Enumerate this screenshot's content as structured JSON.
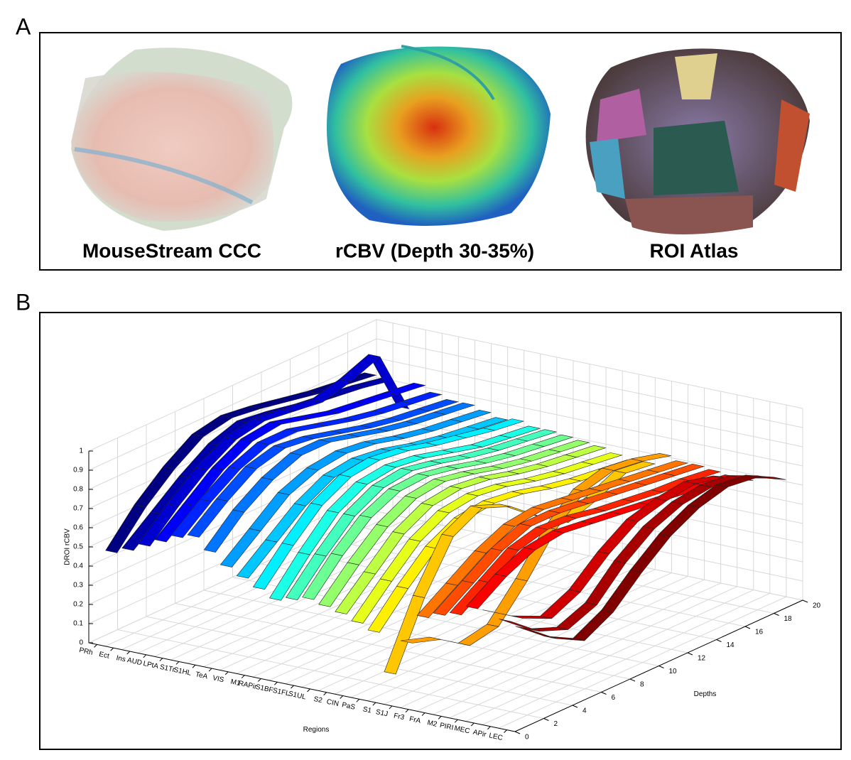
{
  "panel_a": {
    "label": "A",
    "captions": [
      "MouseStream CCC",
      "rCBV (Depth 30-35%)",
      "ROI Atlas"
    ]
  },
  "chart_data": {
    "type": "ribbon3d",
    "label": "B",
    "zlabel": "DROI rCBV",
    "xlabel": "Regions",
    "ylabel": "Depths",
    "colormap": "jet",
    "grid": true,
    "categories": [
      "PRh",
      "Ect",
      "Ins",
      "AUD",
      "LPtA",
      "S1Tr",
      "S1HL",
      "TeA",
      "VIS",
      "M1",
      "RAPir",
      "S1BF",
      "S1FL",
      "S1UL",
      "S2",
      "CIN",
      "PaS",
      "S1",
      "S1J",
      "Fr3",
      "FrA",
      "M2",
      "PIRI",
      "MEC",
      "APir",
      "LEC"
    ],
    "x": [
      1,
      3,
      5,
      7,
      9,
      11,
      13,
      15,
      17,
      19
    ],
    "values": [
      [
        0.45,
        0.62,
        0.75,
        0.85,
        0.88,
        0.86,
        0.83,
        0.8,
        0.78,
        0.76
      ],
      [
        0.48,
        0.6,
        0.72,
        0.82,
        0.87,
        0.85,
        0.82,
        0.8,
        0.78,
        0.75
      ],
      [
        0.52,
        0.66,
        0.78,
        0.87,
        0.9,
        0.88,
        0.86,
        0.9,
        0.96,
        0.62
      ],
      [
        0.56,
        0.68,
        0.8,
        0.88,
        0.9,
        0.86,
        0.82,
        0.8,
        0.78,
        0.76
      ],
      [
        0.6,
        0.72,
        0.82,
        0.88,
        0.88,
        0.84,
        0.8,
        0.77,
        0.75,
        0.73
      ],
      [
        0.62,
        0.74,
        0.84,
        0.88,
        0.86,
        0.82,
        0.78,
        0.75,
        0.73,
        0.71
      ],
      [
        0.56,
        0.7,
        0.8,
        0.86,
        0.86,
        0.82,
        0.78,
        0.75,
        0.73,
        0.71
      ],
      [
        0.5,
        0.62,
        0.74,
        0.8,
        0.82,
        0.8,
        0.76,
        0.73,
        0.71,
        0.69
      ],
      [
        0.46,
        0.58,
        0.7,
        0.78,
        0.8,
        0.78,
        0.74,
        0.71,
        0.69,
        0.67
      ],
      [
        0.42,
        0.58,
        0.72,
        0.8,
        0.82,
        0.8,
        0.76,
        0.73,
        0.7,
        0.68
      ],
      [
        0.38,
        0.55,
        0.7,
        0.78,
        0.8,
        0.78,
        0.74,
        0.7,
        0.68,
        0.66
      ],
      [
        0.4,
        0.56,
        0.7,
        0.78,
        0.8,
        0.77,
        0.73,
        0.7,
        0.68,
        0.66
      ],
      [
        0.42,
        0.58,
        0.71,
        0.78,
        0.79,
        0.76,
        0.72,
        0.69,
        0.67,
        0.65
      ],
      [
        0.4,
        0.55,
        0.68,
        0.76,
        0.78,
        0.75,
        0.71,
        0.68,
        0.66,
        0.64
      ],
      [
        0.38,
        0.52,
        0.66,
        0.74,
        0.76,
        0.74,
        0.7,
        0.67,
        0.65,
        0.63
      ],
      [
        0.35,
        0.5,
        0.64,
        0.72,
        0.74,
        0.72,
        0.68,
        0.65,
        0.63,
        0.61
      ],
      [
        0.32,
        0.48,
        0.62,
        0.7,
        0.72,
        0.7,
        0.66,
        0.63,
        0.61,
        0.59
      ],
      [
        0.12,
        0.45,
        0.7,
        0.78,
        0.72,
        0.6,
        0.5,
        0.55,
        0.62,
        0.6
      ],
      [
        0.3,
        0.25,
        0.15,
        0.18,
        0.35,
        0.55,
        0.68,
        0.72,
        0.7,
        0.66
      ],
      [
        0.45,
        0.55,
        0.65,
        0.72,
        0.74,
        0.72,
        0.7,
        0.68,
        0.66,
        0.64
      ],
      [
        0.48,
        0.58,
        0.68,
        0.74,
        0.74,
        0.72,
        0.7,
        0.68,
        0.66,
        0.64
      ],
      [
        0.5,
        0.6,
        0.7,
        0.74,
        0.73,
        0.7,
        0.68,
        0.66,
        0.65,
        0.63
      ],
      [
        0.55,
        0.65,
        0.72,
        0.74,
        0.72,
        0.7,
        0.68,
        0.66,
        0.64,
        0.62
      ],
      [
        0.55,
        0.45,
        0.38,
        0.45,
        0.58,
        0.68,
        0.72,
        0.74,
        0.7,
        0.62
      ],
      [
        0.52,
        0.4,
        0.34,
        0.4,
        0.55,
        0.66,
        0.72,
        0.74,
        0.72,
        0.65
      ],
      [
        0.5,
        0.38,
        0.3,
        0.38,
        0.52,
        0.64,
        0.72,
        0.76,
        0.74,
        0.66
      ]
    ],
    "zlim": [
      0,
      1
    ],
    "zticks": [
      0,
      0.1,
      0.2,
      0.3,
      0.4,
      0.5,
      0.6,
      0.7,
      0.8,
      0.9,
      1
    ],
    "ylim": [
      0,
      20
    ],
    "yticks": [
      0,
      2,
      4,
      6,
      8,
      10,
      12,
      14,
      16,
      18,
      20
    ]
  }
}
